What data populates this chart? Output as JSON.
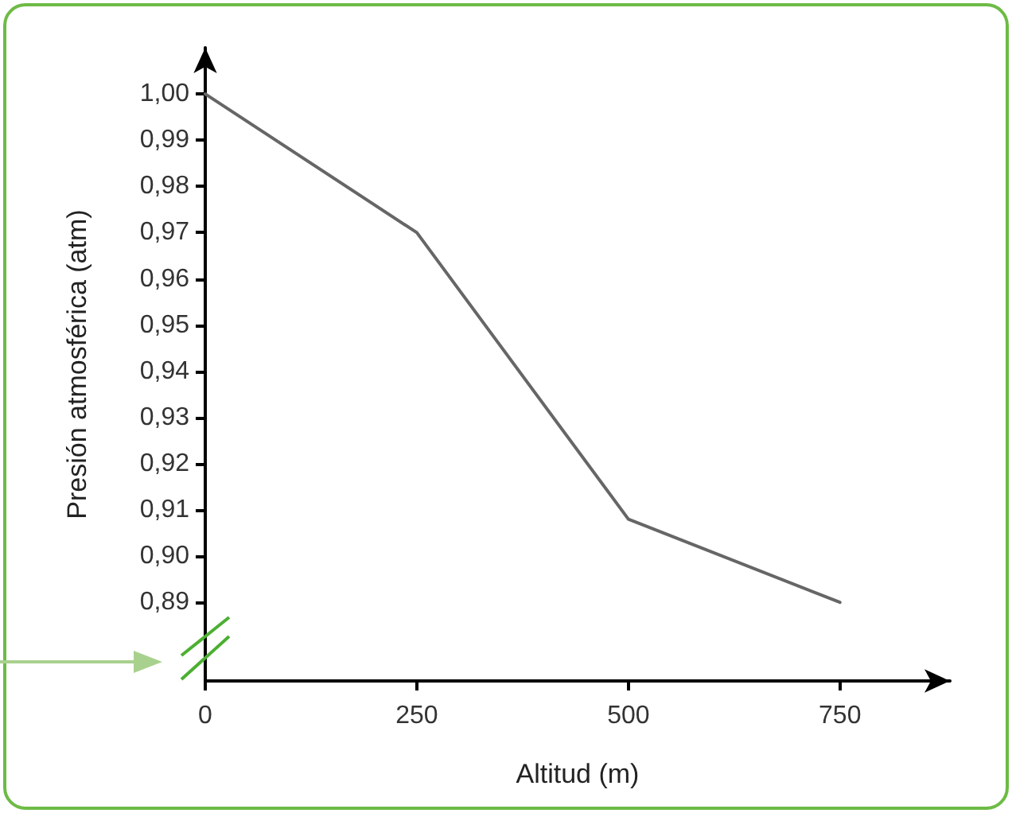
{
  "chart_data": {
    "type": "line",
    "xlabel": "Altitud (m)",
    "ylabel": "Presión atmosférica (atm)",
    "x": [
      0,
      250,
      500,
      750
    ],
    "series": [
      {
        "color": "#666666",
        "values": [
          1.0,
          0.97,
          0.908,
          0.89
        ]
      }
    ],
    "xlim": [
      0,
      880
    ],
    "xticks": [
      0,
      250,
      500,
      750
    ],
    "ylim": [
      0.873,
      1.01
    ],
    "yticks": [
      {
        "value": 0.89,
        "label": "0,89"
      },
      {
        "value": 0.9,
        "label": "0,90"
      },
      {
        "value": 0.91,
        "label": "0,91"
      },
      {
        "value": 0.92,
        "label": "0,92"
      },
      {
        "value": 0.93,
        "label": "0,93"
      },
      {
        "value": 0.94,
        "label": "0,94"
      },
      {
        "value": 0.95,
        "label": "0,95"
      },
      {
        "value": 0.96,
        "label": "0,96"
      },
      {
        "value": 0.97,
        "label": "0,97"
      },
      {
        "value": 0.98,
        "label": "0,98"
      },
      {
        "value": 0.99,
        "label": "0,99"
      },
      {
        "value": 1.0,
        "label": "1,00"
      }
    ],
    "grid": false,
    "marker": "none",
    "line_style": "solid"
  }
}
